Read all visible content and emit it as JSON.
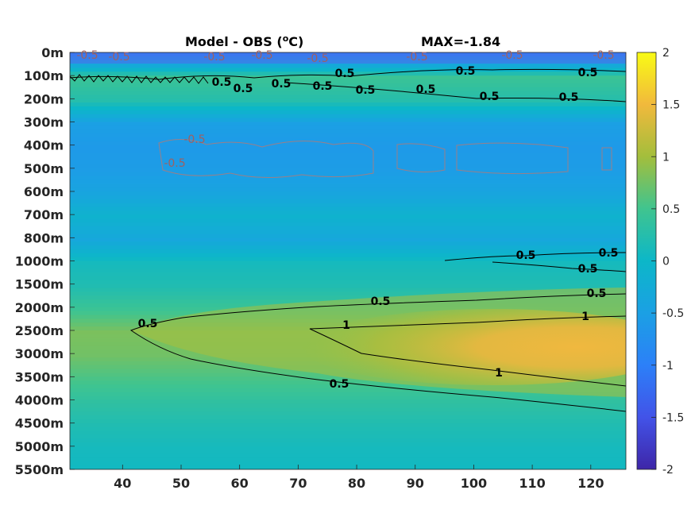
{
  "title_left": "Model - OBS (",
  "title_unit_sup": "o",
  "title_unit_end": "C)",
  "title_right": "MAX=-1.84",
  "chart_data": {
    "type": "heatmap",
    "title": "Model - OBS (oC)   MAX=-1.84",
    "xlabel": "",
    "ylabel": "",
    "xlim": [
      31,
      126
    ],
    "xticks": [
      40,
      50,
      60,
      70,
      80,
      90,
      100,
      110,
      120
    ],
    "yticks": [
      "0m",
      "100m",
      "200m",
      "300m",
      "400m",
      "500m",
      "600m",
      "700m",
      "800m",
      "1000m",
      "1500m",
      "2000m",
      "2500m",
      "3000m",
      "3500m",
      "4000m",
      "4500m",
      "5000m",
      "5500m"
    ],
    "colorbar": {
      "min": -2,
      "max": 2,
      "ticks": [
        2,
        1.5,
        1,
        0.5,
        0,
        -0.5,
        -1,
        -1.5,
        -2
      ],
      "colormap": "parula"
    },
    "depth_profile": [
      {
        "depth": "0m",
        "value": -1.0
      },
      {
        "depth": "100m",
        "value": 0.45
      },
      {
        "depth": "200m",
        "value": 0.25
      },
      {
        "depth": "300m",
        "value": -0.5
      },
      {
        "depth": "400m",
        "value": -0.6
      },
      {
        "depth": "500m",
        "value": -0.55
      },
      {
        "depth": "600m",
        "value": -0.4
      },
      {
        "depth": "700m",
        "value": -0.1
      },
      {
        "depth": "800m",
        "value": -0.35
      },
      {
        "depth": "1000m",
        "value": 0.1
      },
      {
        "depth": "1500m",
        "value": 0.2
      },
      {
        "depth": "2000m",
        "value": 0.45
      },
      {
        "depth": "2500m",
        "value": 0.8
      },
      {
        "depth": "3000m",
        "value": 0.75
      },
      {
        "depth": "3500m",
        "value": 0.55
      },
      {
        "depth": "4000m",
        "value": 0.35
      },
      {
        "depth": "4500m",
        "value": 0.2
      },
      {
        "depth": "5000m",
        "value": 0.1
      },
      {
        "depth": "5500m",
        "value": 0.05
      }
    ],
    "deep_anomaly": {
      "max": 1.25,
      "depth_range": [
        "2000m",
        "4000m"
      ],
      "x_range": [
        42,
        126
      ]
    },
    "contour_labels": {
      "black": [
        "0.5",
        "0.5",
        "0.5",
        "0.5",
        "0.5",
        "0.5",
        "0.5",
        "0.5",
        "0.5",
        "0.5",
        "0.5",
        "0.5",
        "0.5",
        "0.5",
        "0.5",
        "0.5",
        "1",
        "1",
        "1",
        "0.5",
        "0.5"
      ],
      "red": [
        "-0.5",
        "-0.5",
        "-0.5",
        "-0.5",
        "-0.5",
        "-0.5",
        "-0.5",
        "-0.5",
        "-0.5",
        "-0.5"
      ]
    }
  }
}
